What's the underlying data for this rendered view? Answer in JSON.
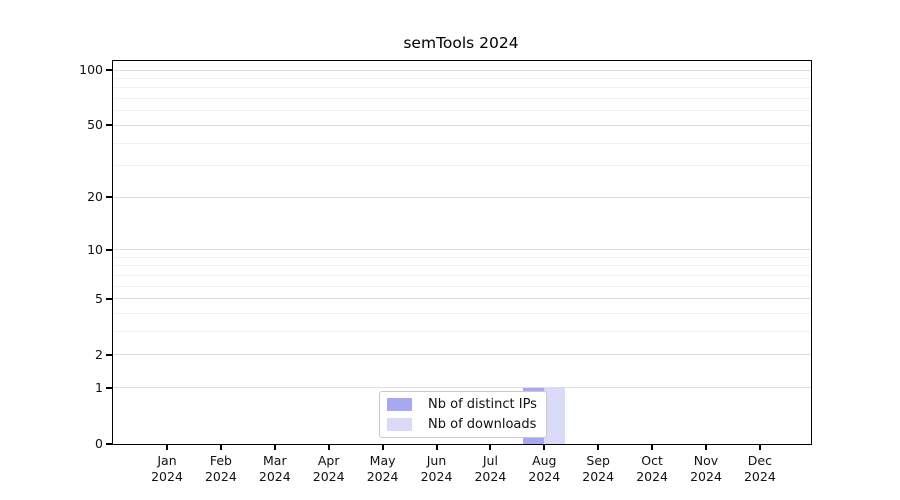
{
  "chart_data": {
    "type": "bar",
    "title": "semTools 2024",
    "categories": [
      "Jan",
      "Feb",
      "Mar",
      "Apr",
      "May",
      "Jun",
      "Jul",
      "Aug",
      "Sep",
      "Oct",
      "Nov",
      "Dec"
    ],
    "category_year": "2024",
    "series": [
      {
        "name": "Nb of distinct IPs",
        "color": "#a8a8f2",
        "values": [
          0,
          0,
          0,
          0,
          0,
          0,
          0,
          1,
          0,
          0,
          0,
          0
        ]
      },
      {
        "name": "Nb of downloads",
        "color": "#d9d9f8",
        "values": [
          0,
          0,
          0,
          0,
          0,
          0,
          0,
          1,
          0,
          0,
          0,
          0
        ]
      }
    ],
    "xlabel": "",
    "ylabel": "",
    "yscale": "log1p",
    "ylim": [
      0,
      112
    ],
    "y_tick_labels": [
      0,
      1,
      2,
      5,
      10,
      20,
      50,
      100
    ],
    "y_minor_gridlines": [
      3,
      4,
      6,
      7,
      8,
      9,
      30,
      40,
      60,
      70,
      80,
      90
    ],
    "grid": "horizontal",
    "legend_position": "lower center",
    "axis_color": "#000000",
    "gridline_major_color": "#dedede",
    "gridline_minor_color": "#f1f1f1",
    "background_color": "#ffffff"
  }
}
